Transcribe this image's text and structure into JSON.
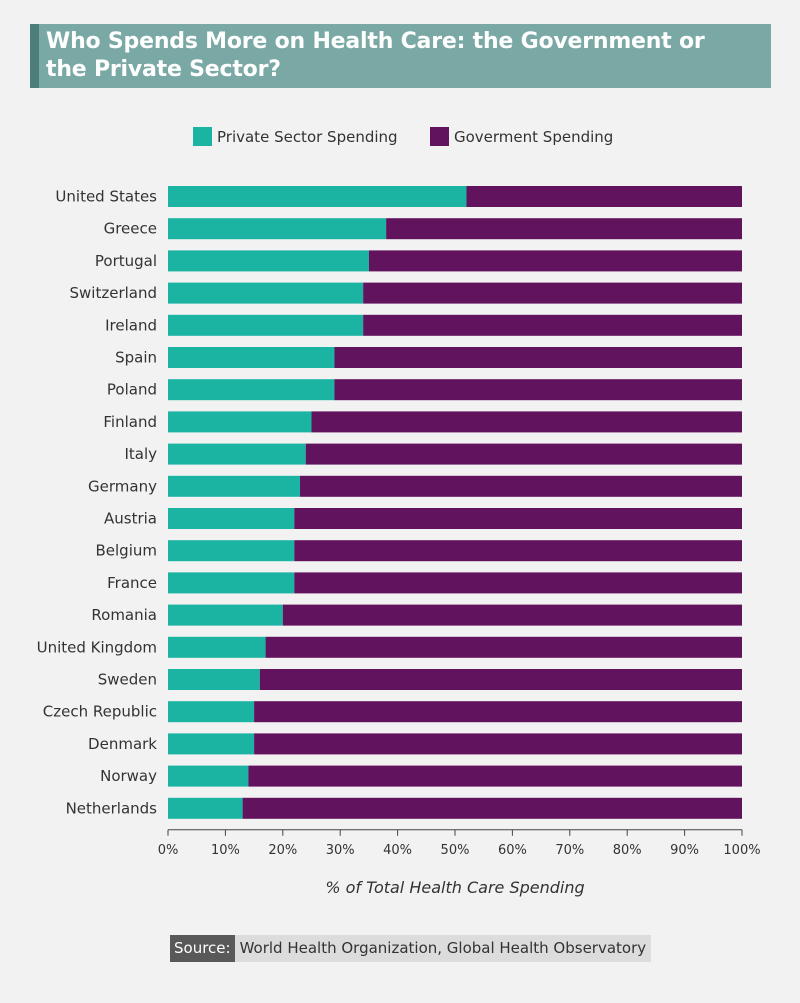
{
  "title": "Who Spends More on Health Care: the Government or the Private Sector?",
  "legend": {
    "private_label": "Private Sector Spending",
    "government_label": "Goverment Spending"
  },
  "colors": {
    "private": "#1bb3a2",
    "government": "#62135e",
    "title_bg": "#7aa9a5",
    "title_accent": "#4e7e7a"
  },
  "source": {
    "tag": "Source:",
    "text": "World Health Organization, Global Health Observatory"
  },
  "chart_data": {
    "type": "bar",
    "orientation": "horizontal",
    "stacked": true,
    "categories": [
      "United States",
      "Greece",
      "Portugal",
      "Switzerland",
      "Ireland",
      "Spain",
      "Poland",
      "Finland",
      "Italy",
      "Germany",
      "Austria",
      "Belgium",
      "France",
      "Romania",
      "United Kingdom",
      "Sweden",
      "Czech Republic",
      "Denmark",
      "Norway",
      "Netherlands"
    ],
    "series": [
      {
        "name": "Private Sector Spending",
        "values": [
          52,
          38,
          35,
          34,
          34,
          29,
          29,
          25,
          24,
          23,
          22,
          22,
          22,
          20,
          17,
          16,
          15,
          15,
          14,
          13
        ]
      },
      {
        "name": "Goverment Spending",
        "values": [
          48,
          62,
          65,
          66,
          66,
          71,
          71,
          75,
          76,
          77,
          78,
          78,
          78,
          80,
          83,
          84,
          85,
          85,
          86,
          87
        ]
      }
    ],
    "xlabel": "% of Total Health Care Spending",
    "xticks": [
      "0%",
      "10%",
      "20%",
      "30%",
      "40%",
      "50%",
      "60%",
      "70%",
      "80%",
      "90%",
      "100%"
    ],
    "xlim": [
      0,
      100
    ],
    "legend_position": "top",
    "grid": false
  }
}
